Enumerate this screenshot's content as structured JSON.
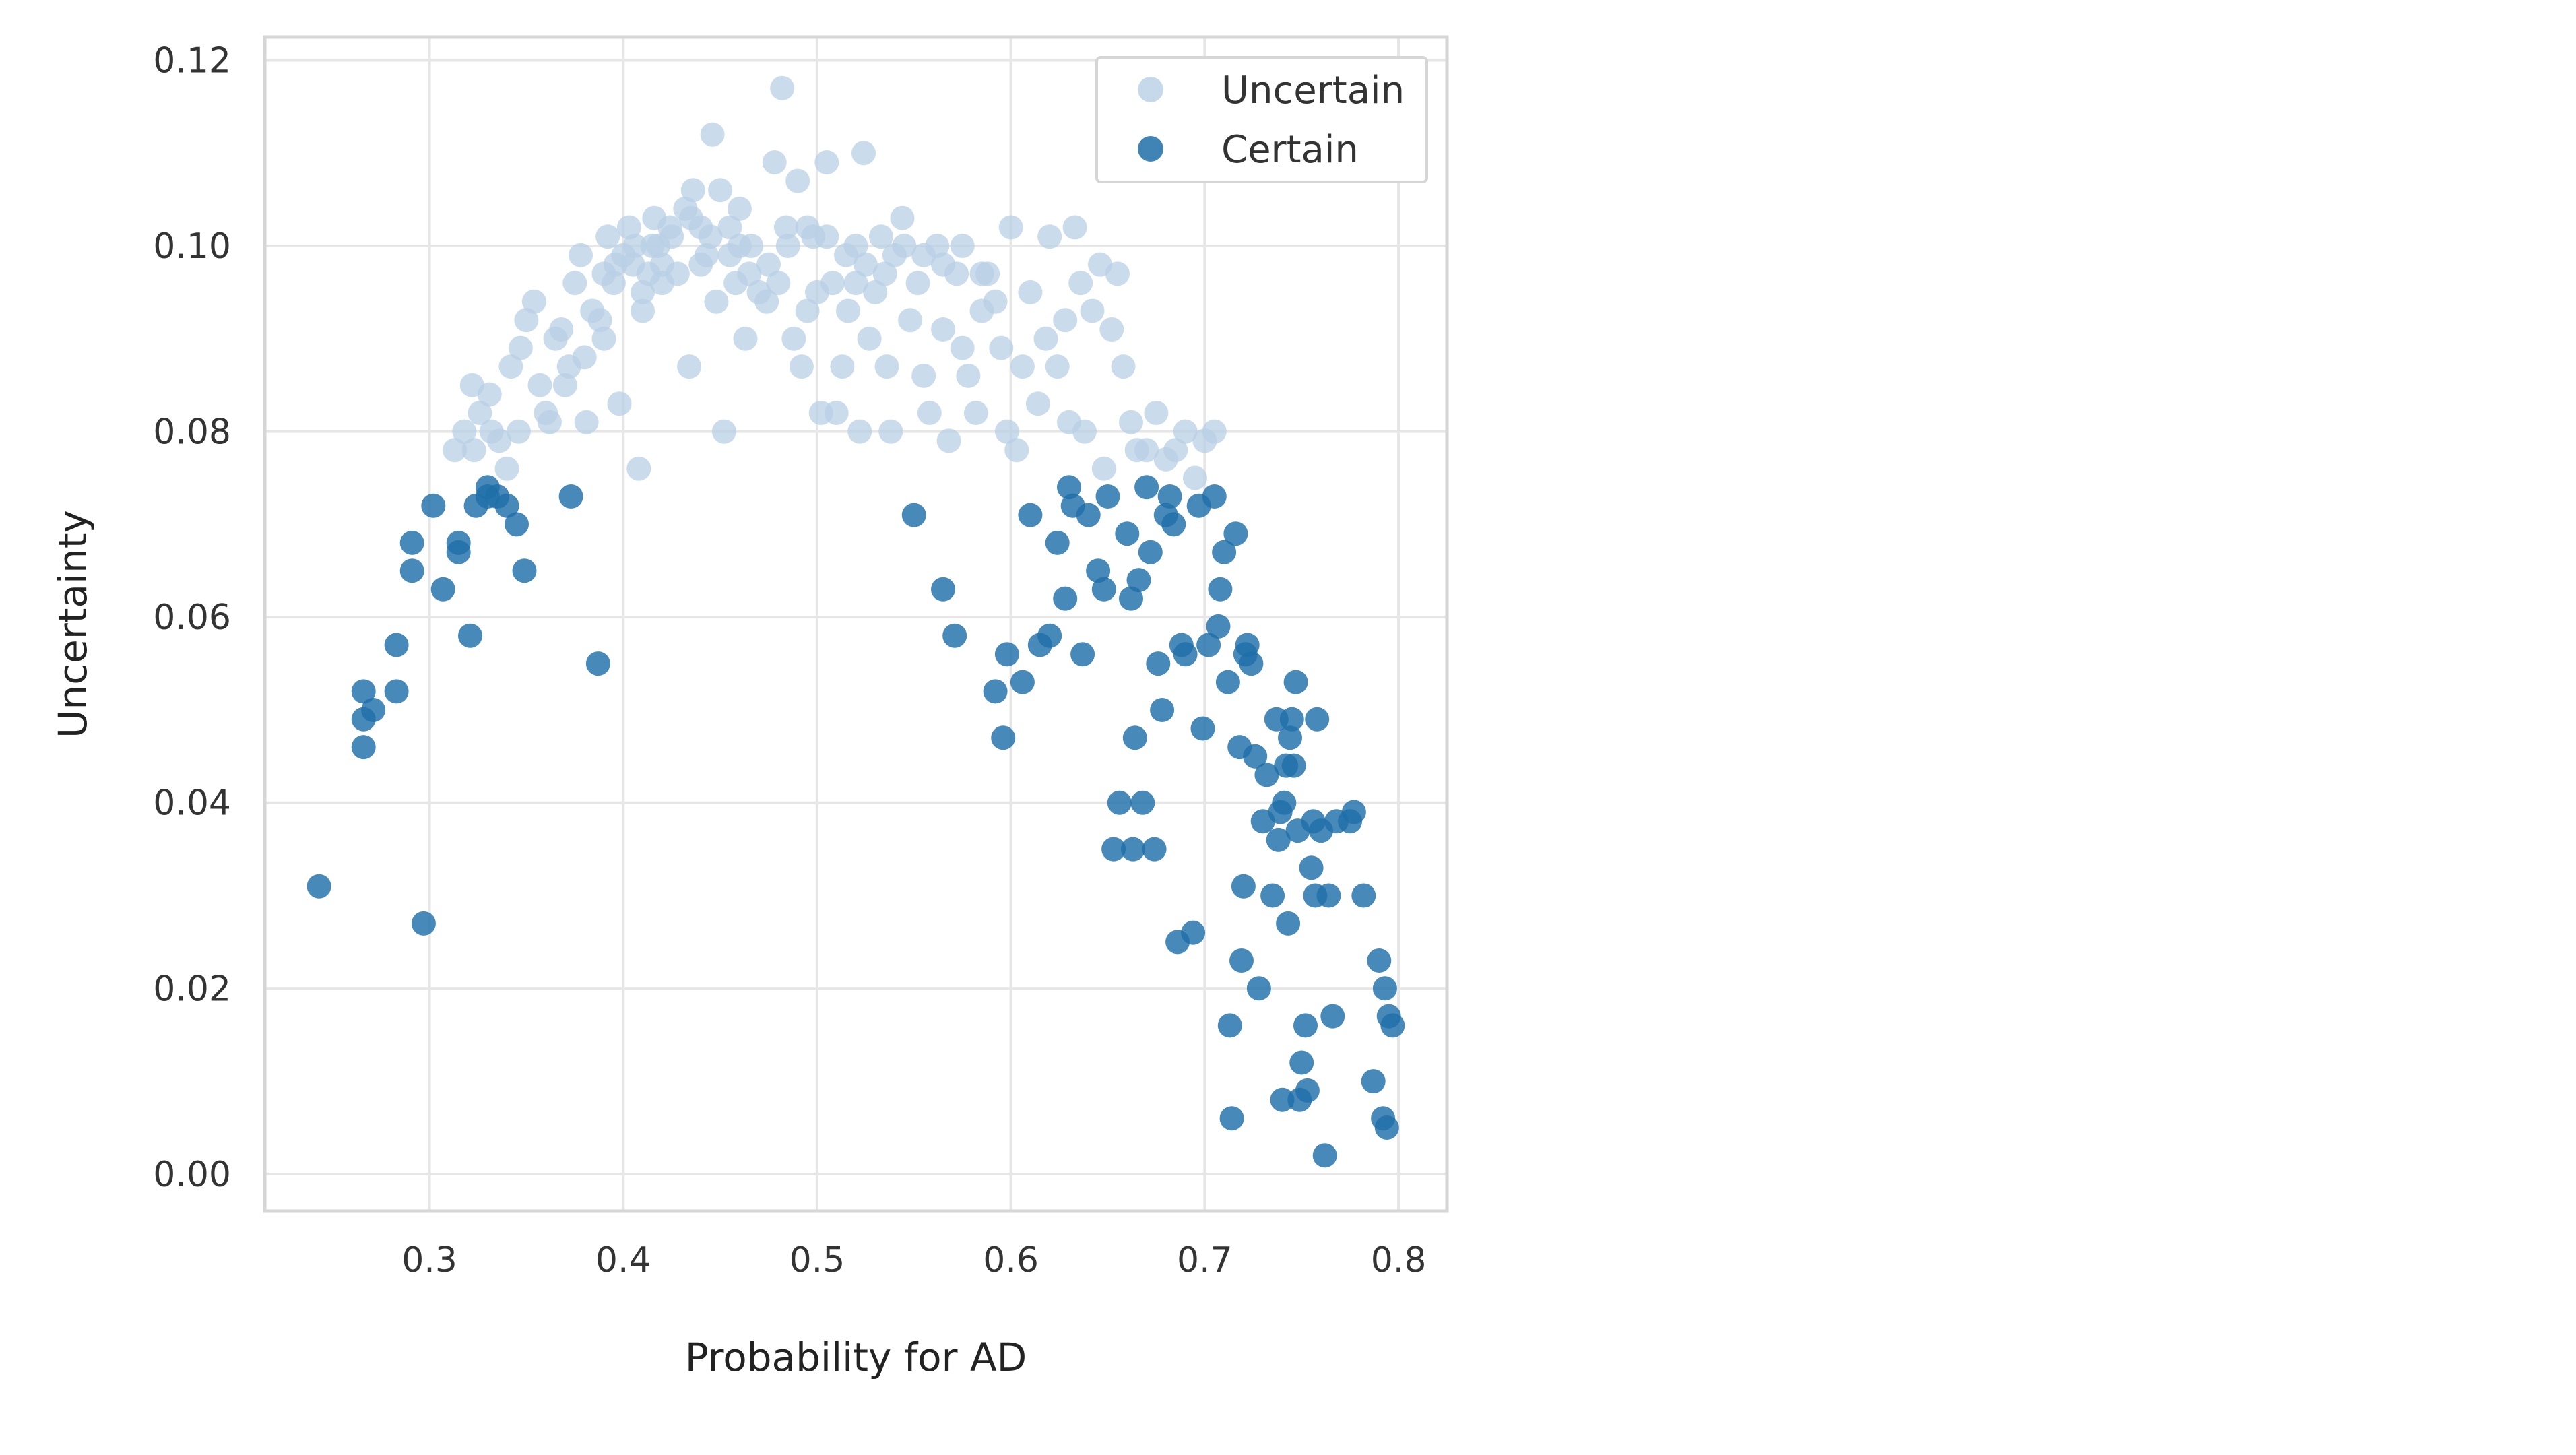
{
  "chart_data": {
    "type": "scatter",
    "xlabel": "Probability for AD",
    "ylabel": "Uncertainty",
    "xlim": [
      0.215,
      0.825
    ],
    "ylim": [
      -0.004,
      0.1225
    ],
    "xticks": [
      0.3,
      0.4,
      0.5,
      0.6,
      0.7,
      0.8
    ],
    "yticks": [
      0.0,
      0.02,
      0.04,
      0.06,
      0.08,
      0.1,
      0.12
    ],
    "xtick_labels": [
      "0.3",
      "0.4",
      "0.5",
      "0.6",
      "0.7",
      "0.8"
    ],
    "ytick_labels": [
      "0.00",
      "0.02",
      "0.04",
      "0.06",
      "0.08",
      "0.10",
      "0.12"
    ],
    "grid": true,
    "legend_position": "top-right",
    "series": [
      {
        "name": "Uncertain",
        "color": "#b8cfe6",
        "points": [
          [
            0.313,
            0.078
          ],
          [
            0.318,
            0.08
          ],
          [
            0.322,
            0.085
          ],
          [
            0.326,
            0.082
          ],
          [
            0.331,
            0.084
          ],
          [
            0.323,
            0.078
          ],
          [
            0.336,
            0.079
          ],
          [
            0.34,
            0.076
          ],
          [
            0.342,
            0.087
          ],
          [
            0.332,
            0.08
          ],
          [
            0.347,
            0.089
          ],
          [
            0.35,
            0.092
          ],
          [
            0.354,
            0.094
          ],
          [
            0.346,
            0.08
          ],
          [
            0.357,
            0.085
          ],
          [
            0.36,
            0.082
          ],
          [
            0.362,
            0.081
          ],
          [
            0.365,
            0.09
          ],
          [
            0.368,
            0.091
          ],
          [
            0.372,
            0.087
          ],
          [
            0.375,
            0.096
          ],
          [
            0.378,
            0.099
          ],
          [
            0.381,
            0.081
          ],
          [
            0.384,
            0.093
          ],
          [
            0.388,
            0.092
          ],
          [
            0.39,
            0.097
          ],
          [
            0.392,
            0.101
          ],
          [
            0.396,
            0.098
          ],
          [
            0.398,
            0.083
          ],
          [
            0.4,
            0.099
          ],
          [
            0.403,
            0.102
          ],
          [
            0.406,
            0.1
          ],
          [
            0.408,
            0.076
          ],
          [
            0.41,
            0.093
          ],
          [
            0.413,
            0.097
          ],
          [
            0.416,
            0.103
          ],
          [
            0.418,
            0.1
          ],
          [
            0.42,
            0.098
          ],
          [
            0.424,
            0.102
          ],
          [
            0.428,
            0.097
          ],
          [
            0.432,
            0.104
          ],
          [
            0.434,
            0.087
          ],
          [
            0.436,
            0.106
          ],
          [
            0.44,
            0.102
          ],
          [
            0.443,
            0.099
          ],
          [
            0.446,
            0.112
          ],
          [
            0.448,
            0.094
          ],
          [
            0.45,
            0.106
          ],
          [
            0.452,
            0.08
          ],
          [
            0.455,
            0.102
          ],
          [
            0.458,
            0.096
          ],
          [
            0.46,
            0.104
          ],
          [
            0.463,
            0.09
          ],
          [
            0.466,
            0.1
          ],
          [
            0.47,
            0.095
          ],
          [
            0.474,
            0.094
          ],
          [
            0.478,
            0.109
          ],
          [
            0.482,
            0.117
          ],
          [
            0.484,
            0.102
          ],
          [
            0.488,
            0.09
          ],
          [
            0.49,
            0.107
          ],
          [
            0.492,
            0.087
          ],
          [
            0.495,
            0.093
          ],
          [
            0.498,
            0.101
          ],
          [
            0.502,
            0.082
          ],
          [
            0.505,
            0.109
          ],
          [
            0.508,
            0.096
          ],
          [
            0.51,
            0.082
          ],
          [
            0.513,
            0.087
          ],
          [
            0.516,
            0.093
          ],
          [
            0.52,
            0.1
          ],
          [
            0.522,
            0.08
          ],
          [
            0.524,
            0.11
          ],
          [
            0.527,
            0.09
          ],
          [
            0.53,
            0.095
          ],
          [
            0.533,
            0.101
          ],
          [
            0.536,
            0.087
          ],
          [
            0.538,
            0.08
          ],
          [
            0.54,
            0.099
          ],
          [
            0.544,
            0.103
          ],
          [
            0.548,
            0.092
          ],
          [
            0.552,
            0.096
          ],
          [
            0.555,
            0.086
          ],
          [
            0.558,
            0.082
          ],
          [
            0.562,
            0.1
          ],
          [
            0.565,
            0.091
          ],
          [
            0.568,
            0.079
          ],
          [
            0.572,
            0.097
          ],
          [
            0.575,
            0.089
          ],
          [
            0.578,
            0.086
          ],
          [
            0.582,
            0.082
          ],
          [
            0.585,
            0.093
          ],
          [
            0.588,
            0.097
          ],
          [
            0.592,
            0.094
          ],
          [
            0.595,
            0.089
          ],
          [
            0.598,
            0.08
          ],
          [
            0.6,
            0.102
          ],
          [
            0.603,
            0.078
          ],
          [
            0.606,
            0.087
          ],
          [
            0.61,
            0.095
          ],
          [
            0.614,
            0.083
          ],
          [
            0.618,
            0.09
          ],
          [
            0.62,
            0.101
          ],
          [
            0.624,
            0.087
          ],
          [
            0.628,
            0.092
          ],
          [
            0.63,
            0.081
          ],
          [
            0.633,
            0.102
          ],
          [
            0.636,
            0.096
          ],
          [
            0.638,
            0.08
          ],
          [
            0.642,
            0.093
          ],
          [
            0.646,
            0.098
          ],
          [
            0.648,
            0.076
          ],
          [
            0.652,
            0.091
          ],
          [
            0.655,
            0.097
          ],
          [
            0.658,
            0.087
          ],
          [
            0.662,
            0.081
          ],
          [
            0.665,
            0.078
          ],
          [
            0.67,
            0.078
          ],
          [
            0.675,
            0.082
          ],
          [
            0.68,
            0.077
          ],
          [
            0.685,
            0.078
          ],
          [
            0.69,
            0.08
          ],
          [
            0.695,
            0.075
          ],
          [
            0.7,
            0.079
          ],
          [
            0.705,
            0.08
          ],
          [
            0.395,
            0.096
          ],
          [
            0.405,
            0.098
          ],
          [
            0.415,
            0.1
          ],
          [
            0.425,
            0.101
          ],
          [
            0.435,
            0.103
          ],
          [
            0.445,
            0.101
          ],
          [
            0.455,
            0.099
          ],
          [
            0.465,
            0.097
          ],
          [
            0.475,
            0.098
          ],
          [
            0.485,
            0.1
          ],
          [
            0.495,
            0.102
          ],
          [
            0.505,
            0.101
          ],
          [
            0.515,
            0.099
          ],
          [
            0.525,
            0.098
          ],
          [
            0.535,
            0.097
          ],
          [
            0.545,
            0.1
          ],
          [
            0.555,
            0.099
          ],
          [
            0.565,
            0.098
          ],
          [
            0.575,
            0.1
          ],
          [
            0.585,
            0.097
          ],
          [
            0.38,
            0.088
          ],
          [
            0.37,
            0.085
          ],
          [
            0.39,
            0.09
          ],
          [
            0.41,
            0.095
          ],
          [
            0.42,
            0.096
          ],
          [
            0.44,
            0.098
          ],
          [
            0.46,
            0.1
          ],
          [
            0.48,
            0.096
          ],
          [
            0.5,
            0.095
          ],
          [
            0.52,
            0.096
          ]
        ]
      },
      {
        "name": "Certain",
        "color": "#1f6fa8",
        "points": [
          [
            0.243,
            0.031
          ],
          [
            0.297,
            0.027
          ],
          [
            0.266,
            0.052
          ],
          [
            0.266,
            0.049
          ],
          [
            0.266,
            0.046
          ],
          [
            0.271,
            0.05
          ],
          [
            0.283,
            0.057
          ],
          [
            0.283,
            0.052
          ],
          [
            0.291,
            0.068
          ],
          [
            0.291,
            0.065
          ],
          [
            0.302,
            0.072
          ],
          [
            0.307,
            0.063
          ],
          [
            0.315,
            0.067
          ],
          [
            0.315,
            0.068
          ],
          [
            0.321,
            0.058
          ],
          [
            0.324,
            0.072
          ],
          [
            0.33,
            0.074
          ],
          [
            0.33,
            0.073
          ],
          [
            0.335,
            0.073
          ],
          [
            0.34,
            0.072
          ],
          [
            0.345,
            0.07
          ],
          [
            0.349,
            0.065
          ],
          [
            0.373,
            0.073
          ],
          [
            0.387,
            0.055
          ],
          [
            0.55,
            0.071
          ],
          [
            0.565,
            0.063
          ],
          [
            0.571,
            0.058
          ],
          [
            0.592,
            0.052
          ],
          [
            0.596,
            0.047
          ],
          [
            0.598,
            0.056
          ],
          [
            0.606,
            0.053
          ],
          [
            0.61,
            0.071
          ],
          [
            0.615,
            0.057
          ],
          [
            0.62,
            0.058
          ],
          [
            0.624,
            0.068
          ],
          [
            0.628,
            0.062
          ],
          [
            0.63,
            0.074
          ],
          [
            0.632,
            0.072
          ],
          [
            0.637,
            0.056
          ],
          [
            0.64,
            0.071
          ],
          [
            0.645,
            0.065
          ],
          [
            0.648,
            0.063
          ],
          [
            0.65,
            0.073
          ],
          [
            0.653,
            0.035
          ],
          [
            0.656,
            0.04
          ],
          [
            0.66,
            0.069
          ],
          [
            0.662,
            0.062
          ],
          [
            0.663,
            0.035
          ],
          [
            0.664,
            0.047
          ],
          [
            0.666,
            0.064
          ],
          [
            0.668,
            0.04
          ],
          [
            0.67,
            0.074
          ],
          [
            0.672,
            0.067
          ],
          [
            0.674,
            0.035
          ],
          [
            0.676,
            0.055
          ],
          [
            0.678,
            0.05
          ],
          [
            0.68,
            0.071
          ],
          [
            0.682,
            0.073
          ],
          [
            0.684,
            0.07
          ],
          [
            0.686,
            0.025
          ],
          [
            0.688,
            0.057
          ],
          [
            0.69,
            0.056
          ],
          [
            0.694,
            0.026
          ],
          [
            0.697,
            0.072
          ],
          [
            0.699,
            0.048
          ],
          [
            0.702,
            0.057
          ],
          [
            0.705,
            0.073
          ],
          [
            0.707,
            0.059
          ],
          [
            0.708,
            0.063
          ],
          [
            0.71,
            0.067
          ],
          [
            0.712,
            0.053
          ],
          [
            0.713,
            0.016
          ],
          [
            0.714,
            0.006
          ],
          [
            0.716,
            0.069
          ],
          [
            0.718,
            0.046
          ],
          [
            0.719,
            0.023
          ],
          [
            0.72,
            0.031
          ],
          [
            0.721,
            0.056
          ],
          [
            0.722,
            0.057
          ],
          [
            0.724,
            0.055
          ],
          [
            0.726,
            0.045
          ],
          [
            0.728,
            0.02
          ],
          [
            0.73,
            0.038
          ],
          [
            0.732,
            0.043
          ],
          [
            0.735,
            0.03
          ],
          [
            0.737,
            0.049
          ],
          [
            0.739,
            0.039
          ],
          [
            0.741,
            0.04
          ],
          [
            0.743,
            0.027
          ],
          [
            0.744,
            0.047
          ],
          [
            0.745,
            0.049
          ],
          [
            0.746,
            0.044
          ],
          [
            0.747,
            0.053
          ],
          [
            0.748,
            0.037
          ],
          [
            0.749,
            0.008
          ],
          [
            0.75,
            0.012
          ],
          [
            0.752,
            0.016
          ],
          [
            0.753,
            0.009
          ],
          [
            0.755,
            0.033
          ],
          [
            0.757,
            0.03
          ],
          [
            0.758,
            0.049
          ],
          [
            0.76,
            0.037
          ],
          [
            0.762,
            0.002
          ],
          [
            0.764,
            0.03
          ],
          [
            0.766,
            0.017
          ],
          [
            0.768,
            0.038
          ],
          [
            0.775,
            0.038
          ],
          [
            0.777,
            0.039
          ],
          [
            0.782,
            0.03
          ],
          [
            0.787,
            0.01
          ],
          [
            0.79,
            0.023
          ],
          [
            0.792,
            0.006
          ],
          [
            0.793,
            0.02
          ],
          [
            0.795,
            0.017
          ],
          [
            0.797,
            0.016
          ],
          [
            0.794,
            0.005
          ],
          [
            0.74,
            0.008
          ],
          [
            0.742,
            0.044
          ],
          [
            0.756,
            0.038
          ],
          [
            0.738,
            0.036
          ]
        ]
      }
    ]
  }
}
